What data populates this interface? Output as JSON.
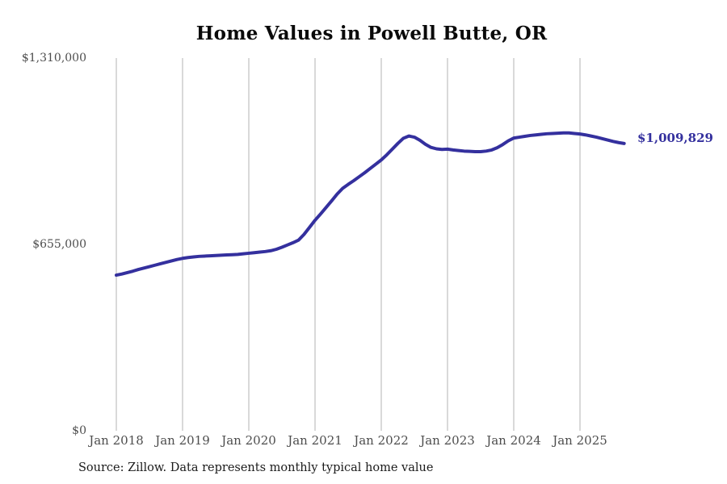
{
  "page": {
    "background_color": "#ffffff"
  },
  "chart_data": {
    "type": "line",
    "title": "Home Values in Powell Butte, OR",
    "source_note": "Source: Zillow. Data represents monthly typical home value",
    "latest_value_label": "$1,009,829",
    "line_color": "#34309e",
    "grid_color": "#b3b3b3",
    "tick_label_color": "#4d4d4d",
    "grid": "vertical-only",
    "legend_position": "none",
    "ylim": [
      0,
      1310000
    ],
    "y_ticks": [
      {
        "label": "$0",
        "value": 0
      },
      {
        "label": "$655,000",
        "value": 655000
      },
      {
        "label": "$1,310,000",
        "value": 1310000
      }
    ],
    "x_ticks": [
      "Jan 2018",
      "Jan 2019",
      "Jan 2020",
      "Jan 2021",
      "Jan 2022",
      "Jan 2023",
      "Jan 2024",
      "Jan 2025"
    ],
    "x": [
      "2018-01",
      "2018-02",
      "2018-03",
      "2018-04",
      "2018-05",
      "2018-06",
      "2018-07",
      "2018-08",
      "2018-09",
      "2018-10",
      "2018-11",
      "2018-12",
      "2019-01",
      "2019-02",
      "2019-03",
      "2019-04",
      "2019-05",
      "2019-06",
      "2019-07",
      "2019-08",
      "2019-09",
      "2019-10",
      "2019-11",
      "2019-12",
      "2020-01",
      "2020-02",
      "2020-03",
      "2020-04",
      "2020-05",
      "2020-06",
      "2020-07",
      "2020-08",
      "2020-09",
      "2020-10",
      "2020-11",
      "2020-12",
      "2021-01",
      "2021-02",
      "2021-03",
      "2021-04",
      "2021-05",
      "2021-06",
      "2021-07",
      "2021-08",
      "2021-09",
      "2021-10",
      "2021-11",
      "2021-12",
      "2022-01",
      "2022-02",
      "2022-03",
      "2022-04",
      "2022-05",
      "2022-06",
      "2022-07",
      "2022-08",
      "2022-09",
      "2022-10",
      "2022-11",
      "2022-12",
      "2023-01",
      "2023-02",
      "2023-03",
      "2023-04",
      "2023-05",
      "2023-06",
      "2023-07",
      "2023-08",
      "2023-09",
      "2023-10",
      "2023-11",
      "2023-12",
      "2024-01",
      "2024-02",
      "2024-03",
      "2024-04",
      "2024-05",
      "2024-06",
      "2024-07",
      "2024-08",
      "2024-09",
      "2024-10",
      "2024-11",
      "2024-12",
      "2025-01",
      "2025-02",
      "2025-03",
      "2025-04",
      "2025-05",
      "2025-06",
      "2025-07",
      "2025-08",
      "2025-09"
    ],
    "values": [
      547000,
      551000,
      556000,
      561000,
      567000,
      572000,
      577000,
      582000,
      587000,
      592000,
      597000,
      602000,
      606000,
      609000,
      611000,
      613000,
      614000,
      615000,
      616000,
      617000,
      618000,
      619000,
      620000,
      622000,
      624000,
      626000,
      628000,
      630000,
      633000,
      638000,
      645000,
      653000,
      661000,
      670000,
      690000,
      715000,
      740000,
      762000,
      785000,
      808000,
      832000,
      852000,
      866000,
      879000,
      893000,
      907000,
      922000,
      937000,
      952000,
      970000,
      990000,
      1010000,
      1028000,
      1036000,
      1032000,
      1021000,
      1007000,
      996000,
      991000,
      989000,
      990000,
      987000,
      985000,
      983000,
      982000,
      981000,
      981000,
      983000,
      987000,
      995000,
      1006000,
      1019000,
      1029000,
      1032000,
      1035000,
      1038000,
      1040000,
      1042000,
      1044000,
      1045000,
      1046000,
      1047000,
      1047000,
      1045000,
      1043000,
      1040000,
      1036000,
      1032000,
      1027000,
      1022000,
      1017000,
      1013000,
      1009829
    ]
  }
}
